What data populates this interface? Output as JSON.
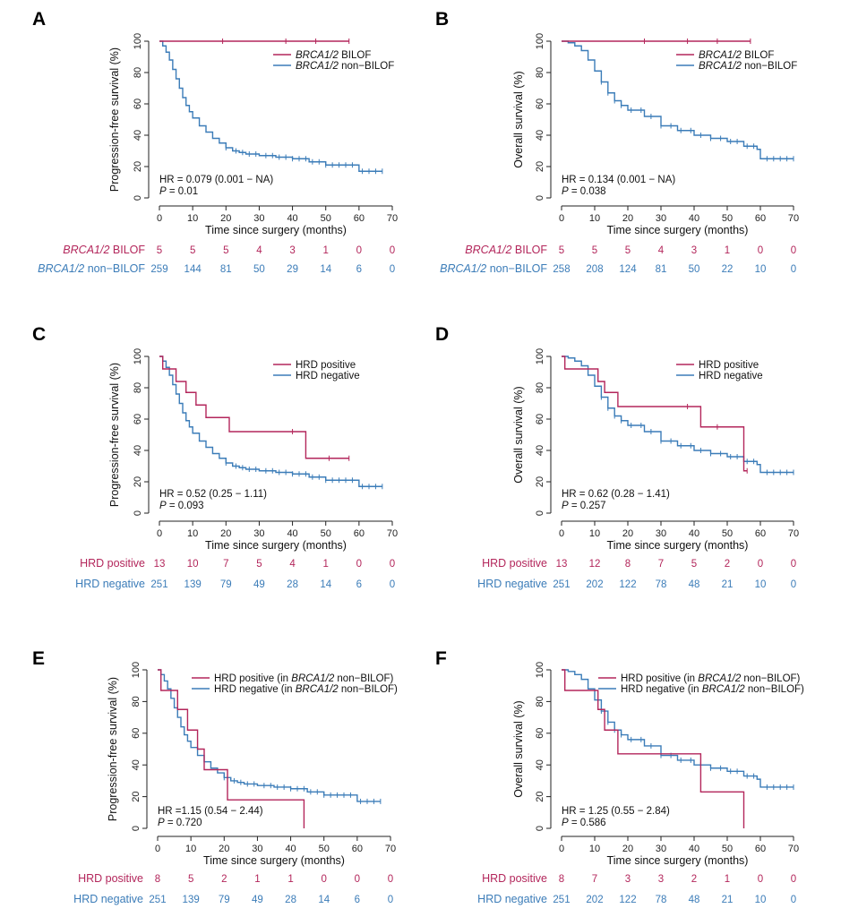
{
  "figure": {
    "colors": {
      "red": "#b3265b",
      "blue": "#3b7cb8",
      "axis": "#222222"
    },
    "xlabel": "Time since surgery (months)",
    "x_ticks": [
      0,
      10,
      20,
      30,
      40,
      50,
      60,
      70
    ],
    "y_ticks": [
      0,
      20,
      40,
      60,
      80,
      100
    ],
    "at_risk_times": [
      0,
      10,
      20,
      30,
      40,
      50,
      60,
      70
    ]
  },
  "chart_data": [
    {
      "panel": "A",
      "type": "line",
      "ylabel": "Progression-free survival (%)",
      "xlim": [
        0,
        70
      ],
      "ylim": [
        0,
        100
      ],
      "stats": {
        "hr": "HR = 0.079 (0.001 − NA)",
        "p_label": "P",
        "p_value": " = 0.01"
      },
      "series": [
        {
          "name_italic": "BRCA1/2",
          "name_rest": " BILOF",
          "color": "red",
          "x": [
            0,
            57
          ],
          "y": [
            100,
            100
          ],
          "censor": [
            19,
            38,
            47,
            57
          ],
          "at_risk": [
            5,
            5,
            5,
            4,
            3,
            1,
            0,
            0
          ]
        },
        {
          "name_italic": "BRCA1/2",
          "name_rest": " non−BILOF",
          "color": "blue",
          "x": [
            0,
            1,
            2,
            3,
            4,
            5,
            6,
            7,
            8,
            9,
            10,
            12,
            14,
            16,
            18,
            20,
            22,
            24,
            26,
            30,
            35,
            40,
            45,
            50,
            55,
            60,
            67
          ],
          "y": [
            100,
            97,
            93,
            88,
            82,
            76,
            70,
            64,
            59,
            55,
            51,
            46,
            42,
            38,
            35,
            32,
            30,
            29,
            28,
            27,
            26,
            25,
            23,
            21,
            21,
            17,
            17
          ],
          "censor": [
            20,
            23,
            25,
            27,
            29,
            32,
            34,
            36,
            38,
            40,
            42,
            44,
            46,
            48,
            50,
            52,
            54,
            56,
            58,
            61,
            63,
            65,
            67
          ],
          "at_risk": [
            259,
            144,
            81,
            50,
            29,
            14,
            6,
            0
          ]
        }
      ]
    },
    {
      "panel": "B",
      "type": "line",
      "ylabel": "Overall survival (%)",
      "xlim": [
        0,
        70
      ],
      "ylim": [
        0,
        100
      ],
      "stats": {
        "hr": "HR = 0.134 (0.001 − NA)",
        "p_label": "P",
        "p_value": " = 0.038"
      },
      "series": [
        {
          "name_italic": "BRCA1/2",
          "name_rest": " BILOF",
          "color": "red",
          "x": [
            0,
            57
          ],
          "y": [
            100,
            100
          ],
          "censor": [
            25,
            38,
            47,
            57
          ],
          "at_risk": [
            5,
            5,
            5,
            4,
            3,
            1,
            0,
            0
          ]
        },
        {
          "name_italic": "BRCA1/2",
          "name_rest": " non−BILOF",
          "color": "blue",
          "x": [
            0,
            2,
            4,
            6,
            8,
            10,
            12,
            14,
            16,
            18,
            20,
            25,
            30,
            35,
            40,
            45,
            50,
            55,
            59,
            60,
            70
          ],
          "y": [
            100,
            99,
            97,
            94,
            88,
            81,
            74,
            67,
            62,
            59,
            56,
            52,
            46,
            43,
            40,
            38,
            36,
            33,
            31,
            25,
            25
          ],
          "censor": [
            12,
            14,
            16,
            18,
            21,
            24,
            27,
            30,
            33,
            36,
            39,
            42,
            45,
            48,
            51,
            53,
            56,
            58,
            62,
            64,
            66,
            68,
            70
          ],
          "at_risk": [
            258,
            208,
            124,
            81,
            50,
            22,
            10,
            0
          ]
        }
      ]
    },
    {
      "panel": "C",
      "type": "line",
      "ylabel": "Progression-free survival (%)",
      "xlim": [
        0,
        70
      ],
      "ylim": [
        0,
        100
      ],
      "stats": {
        "hr": "HR = 0.52 (0.25 − 1.11)",
        "p_label": "P",
        "p_value": " = 0.093"
      },
      "series": [
        {
          "name": "HRD positive",
          "color": "red",
          "x": [
            0,
            1,
            5,
            8,
            11,
            14,
            21,
            44,
            57
          ],
          "y": [
            100,
            92,
            84,
            77,
            69,
            61,
            52,
            35,
            35
          ],
          "censor": [
            40,
            51,
            57
          ],
          "at_risk": [
            13,
            10,
            7,
            5,
            4,
            1,
            0,
            0
          ]
        },
        {
          "name": "HRD negative",
          "color": "blue",
          "x": [
            0,
            1,
            2,
            3,
            4,
            5,
            6,
            7,
            8,
            9,
            10,
            12,
            14,
            16,
            18,
            20,
            22,
            24,
            26,
            30,
            35,
            40,
            45,
            50,
            55,
            60,
            67
          ],
          "y": [
            100,
            97,
            93,
            88,
            82,
            76,
            70,
            64,
            59,
            55,
            51,
            46,
            42,
            38,
            35,
            32,
            30,
            29,
            28,
            27,
            26,
            25,
            23,
            21,
            21,
            17,
            17
          ],
          "censor": [
            20,
            23,
            25,
            27,
            29,
            32,
            34,
            36,
            38,
            40,
            42,
            44,
            46,
            48,
            50,
            52,
            54,
            56,
            58,
            61,
            63,
            65,
            67
          ],
          "at_risk": [
            251,
            139,
            79,
            49,
            28,
            14,
            6,
            0
          ]
        }
      ]
    },
    {
      "panel": "D",
      "type": "line",
      "ylabel": "Overall survival (%)",
      "xlim": [
        0,
        70
      ],
      "ylim": [
        0,
        100
      ],
      "stats": {
        "hr": "HR = 0.62 (0.28 − 1.41)",
        "p_label": "P",
        "p_value": " = 0.257"
      },
      "series": [
        {
          "name": "HRD positive",
          "color": "red",
          "x": [
            0,
            1,
            11,
            13,
            17,
            42,
            55,
            56
          ],
          "y": [
            100,
            92,
            84,
            77,
            68,
            55,
            27,
            27
          ],
          "censor": [
            38,
            47,
            56
          ],
          "at_risk": [
            13,
            12,
            8,
            7,
            5,
            2,
            0,
            0
          ]
        },
        {
          "name": "HRD negative",
          "color": "blue",
          "x": [
            0,
            2,
            4,
            6,
            8,
            10,
            12,
            14,
            16,
            18,
            20,
            25,
            30,
            35,
            40,
            45,
            50,
            55,
            59,
            60,
            70
          ],
          "y": [
            100,
            99,
            97,
            94,
            88,
            81,
            74,
            67,
            62,
            59,
            56,
            52,
            46,
            43,
            40,
            38,
            36,
            33,
            31,
            26,
            26
          ],
          "censor": [
            12,
            14,
            16,
            18,
            21,
            24,
            27,
            30,
            33,
            36,
            39,
            42,
            45,
            48,
            51,
            53,
            56,
            58,
            62,
            64,
            66,
            68,
            70
          ],
          "at_risk": [
            251,
            202,
            122,
            78,
            48,
            21,
            10,
            0
          ]
        }
      ]
    },
    {
      "panel": "E",
      "type": "line",
      "ylabel": "Progression-free survival (%)",
      "xlim": [
        0,
        70
      ],
      "ylim": [
        0,
        100
      ],
      "stats": {
        "hr": "HR =1.15 (0.54 − 2.44)",
        "p_label": "P",
        "p_value": " = 0.720"
      },
      "series": [
        {
          "name_plain": "HRD positive (in ",
          "name_italic": "BRCA1/2",
          "name_rest": " non−BILOF)",
          "color": "red",
          "x": [
            0,
            1,
            4,
            6,
            9,
            12,
            14,
            20,
            21,
            44
          ],
          "y": [
            100,
            87,
            87,
            75,
            62,
            50,
            37,
            37,
            18,
            0
          ],
          "censor": [],
          "at_risk": [
            8,
            5,
            2,
            1,
            1,
            0,
            0,
            0
          ]
        },
        {
          "name_plain": "HRD negative (in ",
          "name_italic": "BRCA1/2",
          "name_rest": " non−BILOF)",
          "color": "blue",
          "x": [
            0,
            1,
            2,
            3,
            4,
            5,
            6,
            7,
            8,
            9,
            10,
            12,
            14,
            16,
            18,
            20,
            22,
            24,
            26,
            30,
            35,
            40,
            45,
            50,
            55,
            60,
            67
          ],
          "y": [
            100,
            97,
            93,
            88,
            82,
            76,
            70,
            64,
            59,
            55,
            51,
            46,
            42,
            38,
            35,
            32,
            30,
            29,
            28,
            27,
            26,
            25,
            23,
            21,
            21,
            17,
            17
          ],
          "censor": [
            20,
            23,
            25,
            27,
            29,
            32,
            34,
            36,
            38,
            40,
            42,
            44,
            46,
            48,
            50,
            52,
            54,
            56,
            58,
            61,
            63,
            65,
            67
          ],
          "at_risk": [
            251,
            139,
            79,
            49,
            28,
            14,
            6,
            0
          ]
        }
      ]
    },
    {
      "panel": "F",
      "type": "line",
      "ylabel": "Overall survival (%)",
      "xlim": [
        0,
        70
      ],
      "ylim": [
        0,
        100
      ],
      "stats": {
        "hr": "HR = 1.25 (0.55 − 2.84)",
        "p_label": "P",
        "p_value": " = 0.586"
      },
      "series": [
        {
          "name_plain": "HRD positive (in ",
          "name_italic": "BRCA1/2",
          "name_rest": " non−BILOF)",
          "color": "red",
          "x": [
            0,
            1,
            11,
            13,
            17,
            42,
            55
          ],
          "y": [
            100,
            87,
            75,
            62,
            47,
            23,
            0
          ],
          "censor": [],
          "at_risk": [
            8,
            7,
            3,
            3,
            2,
            1,
            0,
            0
          ]
        },
        {
          "name_plain": "HRD negative (in ",
          "name_italic": "BRCA1/2",
          "name_rest": " non−BILOF)",
          "color": "blue",
          "x": [
            0,
            2,
            4,
            6,
            8,
            10,
            12,
            14,
            16,
            18,
            20,
            25,
            30,
            35,
            40,
            45,
            50,
            55,
            59,
            60,
            70
          ],
          "y": [
            100,
            99,
            97,
            94,
            88,
            81,
            74,
            67,
            62,
            59,
            56,
            52,
            46,
            43,
            40,
            38,
            36,
            33,
            31,
            26,
            26
          ],
          "censor": [
            12,
            14,
            16,
            18,
            21,
            24,
            27,
            30,
            33,
            36,
            39,
            42,
            45,
            48,
            51,
            53,
            56,
            58,
            62,
            64,
            66,
            68,
            70
          ],
          "at_risk": [
            251,
            202,
            122,
            78,
            48,
            21,
            10,
            0
          ]
        }
      ]
    }
  ]
}
